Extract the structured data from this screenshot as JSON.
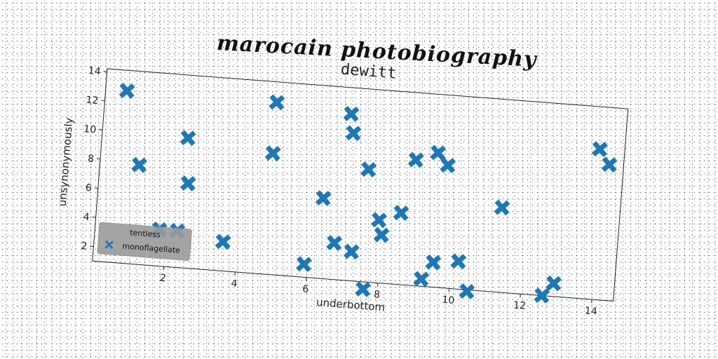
{
  "page": {
    "heading": "marocain photobiography"
  },
  "chart_data": {
    "type": "scatter",
    "title": "dewitt",
    "xlabel": "underbottom",
    "ylabel": "unsynonymously",
    "xlim": [
      0,
      14.6
    ],
    "ylim": [
      1.0,
      14.2
    ],
    "xticks": [
      2,
      4,
      6,
      8,
      10,
      12,
      14
    ],
    "yticks": [
      2,
      4,
      6,
      8,
      10,
      12,
      14
    ],
    "grid": false,
    "legend": {
      "title": "tentless",
      "position": "lower-left"
    },
    "series": [
      {
        "name": "monoflagellate",
        "marker": "X",
        "color": "#1f77b4",
        "points": [
          [
            0.6,
            12.8
          ],
          [
            1.1,
            7.8
          ],
          [
            1.8,
            3.5
          ],
          [
            2.3,
            3.5
          ],
          [
            2.4,
            9.9
          ],
          [
            2.5,
            6.8
          ],
          [
            3.6,
            3.0
          ],
          [
            4.8,
            9.3
          ],
          [
            4.8,
            12.8
          ],
          [
            5.9,
            1.9
          ],
          [
            6.3,
            6.5
          ],
          [
            6.7,
            3.5
          ],
          [
            6.9,
            12.4
          ],
          [
            7.0,
            11.1
          ],
          [
            7.2,
            3.0
          ],
          [
            7.5,
            8.7
          ],
          [
            7.6,
            0.5
          ],
          [
            7.9,
            5.3
          ],
          [
            8.0,
            4.3
          ],
          [
            8.5,
            5.9
          ],
          [
            8.8,
            9.6
          ],
          [
            9.2,
            1.5
          ],
          [
            9.4,
            10.2
          ],
          [
            9.5,
            2.7
          ],
          [
            9.7,
            9.4
          ],
          [
            10.2,
            2.9
          ],
          [
            10.5,
            0.9
          ],
          [
            11.3,
            6.8
          ],
          [
            12.6,
            1.0
          ],
          [
            12.9,
            1.9
          ],
          [
            13.9,
            11.3
          ],
          [
            14.2,
            10.3
          ]
        ]
      }
    ]
  },
  "colors": {
    "marker": "#1f77b4",
    "legend_bg": "#9a9a9a"
  }
}
